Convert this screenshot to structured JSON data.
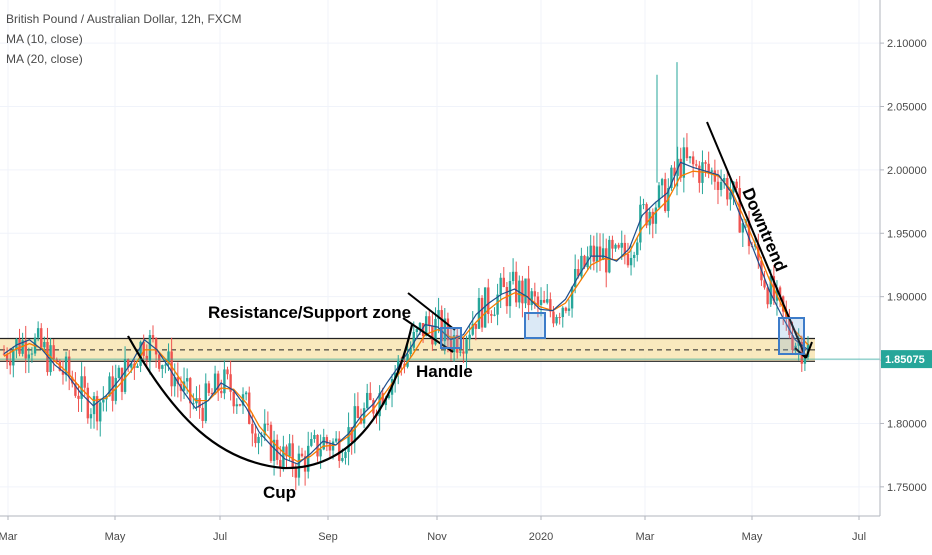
{
  "legend": {
    "title": "British Pound / Australian Dollar, 12h, FXCM",
    "ma10": "MA (10, close)",
    "ma20": "MA (20, close)"
  },
  "chart_data": {
    "type": "candlestick",
    "title": "British Pound / Australian Dollar, 12h, FXCM",
    "symbol": "GBP/AUD",
    "timeframe": "12h",
    "source": "FXCM",
    "y_axis": {
      "position": "right",
      "ticks": [
        1.75,
        1.8,
        1.85,
        1.9,
        1.95,
        2.0,
        2.05,
        2.1
      ],
      "tick_labels": [
        "1.75000",
        "1.80000",
        "1.85000",
        "1.90000",
        "1.95000",
        "2.00000",
        "2.05000",
        "2.10000"
      ],
      "ylim": [
        1.727,
        2.134
      ]
    },
    "x_axis": {
      "tick_labels": [
        "Mar",
        "May",
        "Jul",
        "Sep",
        "Nov",
        "2020",
        "Mar",
        "May",
        "Jul"
      ]
    },
    "last_price": "1.85075",
    "colors": {
      "up": "#26a69a",
      "down": "#ef5350",
      "ma10": "#1f4e8c",
      "ma20": "#f57c00",
      "zone_fill": "#f7e2a8",
      "box": "#3d7cc9",
      "price_line": "#26a69a"
    },
    "series": [
      {
        "name": "MA (10, close)",
        "values": [
          1.855,
          1.862,
          1.866,
          1.858,
          1.846,
          1.838,
          1.824,
          1.814,
          1.822,
          1.834,
          1.848,
          1.866,
          1.858,
          1.843,
          1.826,
          1.812,
          1.818,
          1.832,
          1.826,
          1.812,
          1.793,
          1.782,
          1.772,
          1.768,
          1.776,
          1.786,
          1.783,
          1.792,
          1.806,
          1.816,
          1.832,
          1.846,
          1.862,
          1.878,
          1.876,
          1.866,
          1.87,
          1.886,
          1.895,
          1.902,
          1.906,
          1.9,
          1.89,
          1.889,
          1.898,
          1.916,
          1.932,
          1.932,
          1.928,
          1.938,
          1.964,
          1.974,
          1.982,
          2.006,
          2.002,
          1.999,
          1.996,
          1.982,
          1.956,
          1.93,
          1.904,
          1.884,
          1.866,
          1.858
        ]
      },
      {
        "name": "MA (20, close)",
        "values": [
          1.853,
          1.859,
          1.863,
          1.859,
          1.849,
          1.84,
          1.828,
          1.818,
          1.82,
          1.83,
          1.842,
          1.858,
          1.858,
          1.847,
          1.832,
          1.818,
          1.818,
          1.828,
          1.827,
          1.816,
          1.798,
          1.786,
          1.776,
          1.77,
          1.774,
          1.782,
          1.783,
          1.79,
          1.802,
          1.812,
          1.826,
          1.84,
          1.854,
          1.87,
          1.874,
          1.868,
          1.868,
          1.88,
          1.89,
          1.898,
          1.903,
          1.9,
          1.892,
          1.889,
          1.895,
          1.91,
          1.925,
          1.93,
          1.929,
          1.935,
          1.954,
          1.966,
          1.976,
          1.995,
          1.999,
          1.998,
          1.995,
          1.984,
          1.962,
          1.938,
          1.913,
          1.892,
          1.873,
          1.862
        ]
      }
    ],
    "annotations": [
      {
        "text": "Resistance/Support zone"
      },
      {
        "text": "Handle"
      },
      {
        "text": "Cup"
      },
      {
        "text": "Downtrend"
      }
    ],
    "zone": {
      "y_top": 1.867,
      "y_bottom": 1.849,
      "mid": 1.858
    }
  }
}
